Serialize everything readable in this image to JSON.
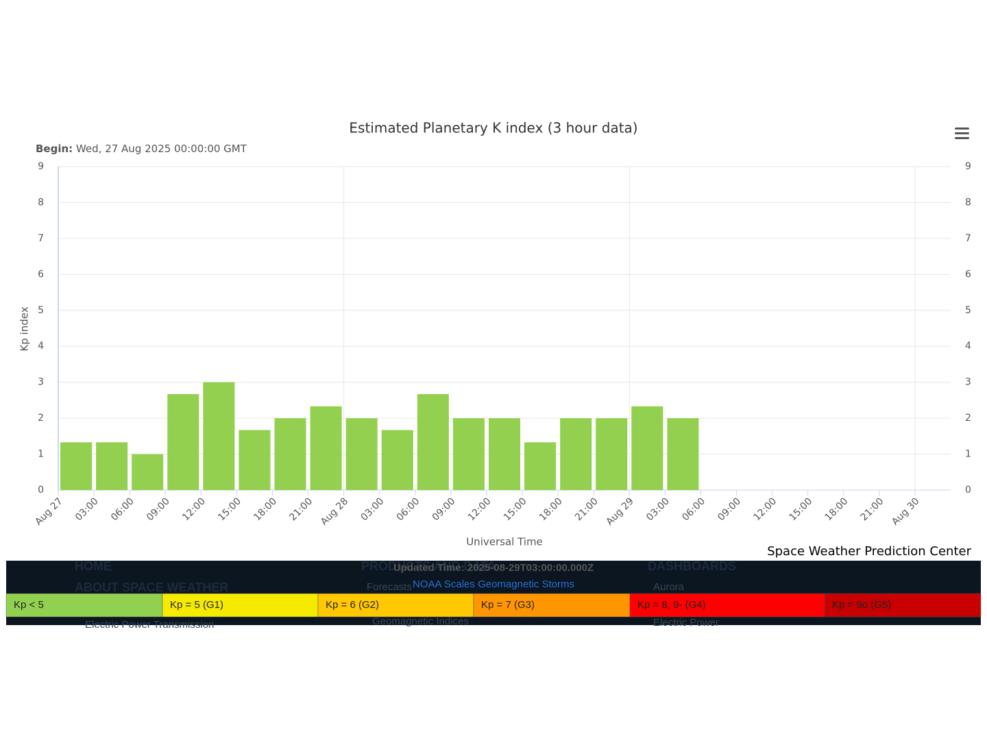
{
  "chart_data": {
    "type": "bar",
    "title": "Estimated Planetary K index (3 hour data)",
    "subtitle_label": "Begin:",
    "subtitle": "Wed, 27 Aug 2025 00:00:00 GMT",
    "ylabel": "Kp index",
    "xlabel": "Universal Time",
    "credit": "Space Weather Prediction Center",
    "xticks": [
      "Aug 27",
      "03:00",
      "06:00",
      "09:00",
      "12:00",
      "15:00",
      "18:00",
      "21:00",
      "Aug 28",
      "03:00",
      "06:00",
      "09:00",
      "12:00",
      "15:00",
      "18:00",
      "21:00",
      "Aug 29",
      "03:00",
      "06:00",
      "09:00",
      "12:00",
      "15:00",
      "18:00",
      "21:00",
      "Aug 30"
    ],
    "values": [
      1.33,
      1.33,
      1,
      2.67,
      3,
      1.67,
      2,
      2.33,
      2,
      1.67,
      2.67,
      2,
      2,
      1.33,
      2,
      2,
      2.33,
      2
    ],
    "color": "#94d050",
    "ylim": [
      0,
      9
    ],
    "yticks": [
      0,
      1,
      2,
      3,
      4,
      5,
      6,
      7,
      8,
      9
    ],
    "grid": true
  },
  "footer": {
    "nav": [
      "HOME",
      "ABOUT SPACE WEATHER",
      "PRODUCTS AND DATA",
      "DASHBOARDS"
    ],
    "links": [
      "Forecasts",
      "Aurora",
      "Geomagnetic Indices",
      "Electric Power",
      "Electric Power Transmission"
    ],
    "updated": "Updated Time: 2025-08-29T03:00:00.000Z",
    "scale_title": "NOAA Scales Geomagnetic Storms",
    "scale": [
      {
        "label": "Kp < 5",
        "color": "#92d050"
      },
      {
        "label": "Kp = 5 (G1)",
        "color": "#f6eb00"
      },
      {
        "label": "Kp = 6 (G2)",
        "color": "#ffc800"
      },
      {
        "label": "Kp = 7 (G3)",
        "color": "#ff9600"
      },
      {
        "label": "Kp = 8, 9- (G4)",
        "color": "#ff0000"
      },
      {
        "label": "Kp = 9o (G5)",
        "color": "#c80000"
      }
    ]
  }
}
